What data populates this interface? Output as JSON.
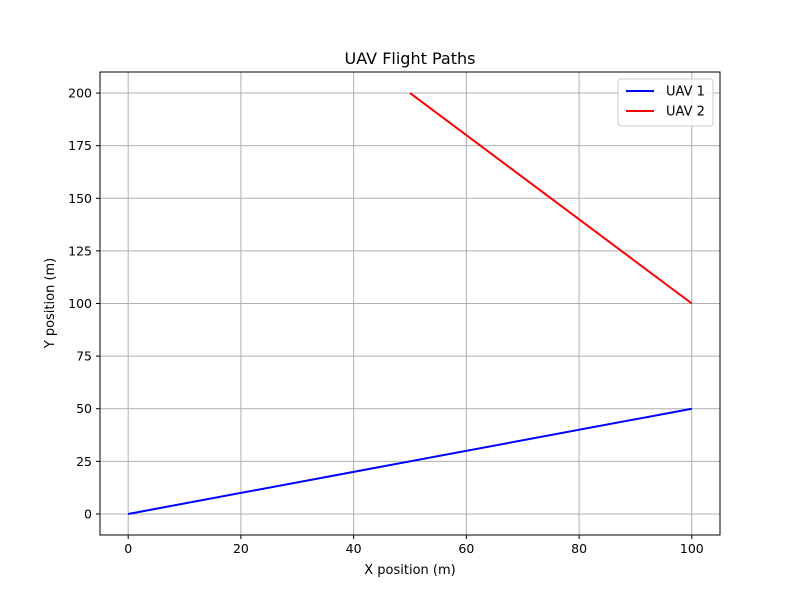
{
  "chart_data": {
    "type": "line",
    "title": "UAV Flight Paths",
    "xlabel": "X position (m)",
    "ylabel": "Y position (m)",
    "xlim": [
      -5,
      105
    ],
    "ylim": [
      -10,
      210
    ],
    "xticks": [
      0,
      20,
      40,
      60,
      80,
      100
    ],
    "yticks": [
      0,
      25,
      50,
      75,
      100,
      125,
      150,
      175,
      200
    ],
    "grid": true,
    "legend_position": "top-right",
    "series": [
      {
        "name": "UAV 1",
        "color": "#0000ff",
        "x": [
          0,
          100
        ],
        "y": [
          0,
          50
        ]
      },
      {
        "name": "UAV 2",
        "color": "#ff0000",
        "x": [
          50,
          100
        ],
        "y": [
          200,
          100
        ]
      }
    ]
  }
}
